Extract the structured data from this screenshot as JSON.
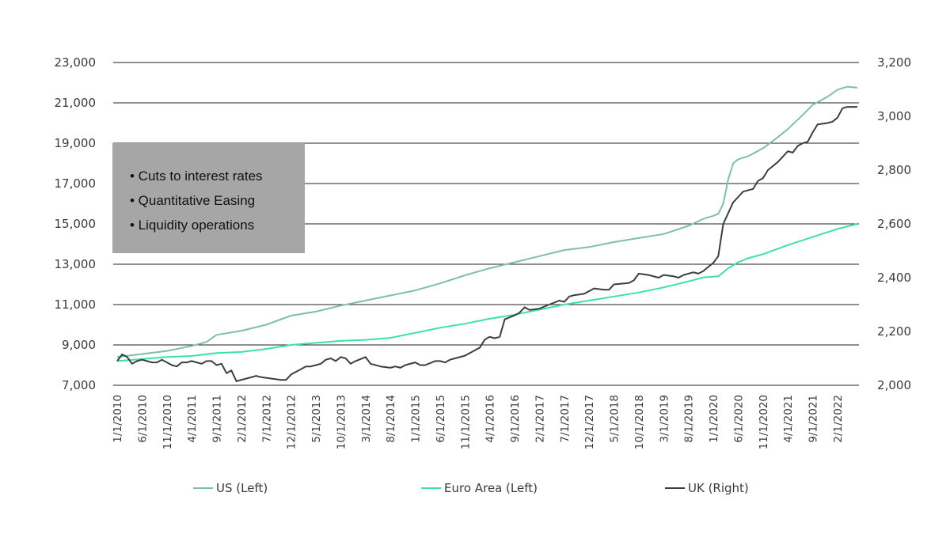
{
  "note_box": {
    "items": [
      "• Cuts to interest rates",
      "• Quantitative Easing",
      "• Liquidity operations"
    ]
  },
  "chart_data": {
    "type": "line",
    "title": "",
    "xlabel": "",
    "ylabel_left": "",
    "ylabel_right": "",
    "y_left": {
      "lim": [
        7000,
        23000
      ],
      "ticks": [
        "7,000",
        "9,000",
        "11,000",
        "13,000",
        "15,000",
        "17,000",
        "19,000",
        "21,000",
        "23,000"
      ]
    },
    "y_right": {
      "lim": [
        2000,
        3200
      ],
      "ticks": [
        "2,000",
        "2,200",
        "2,400",
        "2,600",
        "2,800",
        "3,000",
        "3,200"
      ]
    },
    "x_ticks": [
      "1/1/2010",
      "6/1/2010",
      "11/1/2010",
      "4/1/2011",
      "9/1/2011",
      "2/1/2012",
      "7/1/2012",
      "12/1/2012",
      "5/1/2013",
      "10/1/2013",
      "3/1/2014",
      "8/1/2014",
      "1/1/2015",
      "6/1/2015",
      "11/1/2015",
      "4/1/2016",
      "9/1/2016",
      "2/1/2017",
      "7/1/2017",
      "12/1/2017",
      "5/1/2018",
      "10/1/2018",
      "3/1/2019",
      "8/1/2019",
      "1/1/2020",
      "6/1/2020",
      "11/1/2020",
      "4/1/2021",
      "9/1/2021",
      "2/1/2022"
    ],
    "grid": true,
    "legend_position": "bottom",
    "series": [
      {
        "name": "US (Left)",
        "axis": "left",
        "color": "#7fbfa5",
        "points": [
          [
            "2010-01",
            8400
          ],
          [
            "2010-06",
            8550
          ],
          [
            "2010-11",
            8700
          ],
          [
            "2011-04",
            8950
          ],
          [
            "2011-07",
            9150
          ],
          [
            "2011-09",
            9500
          ],
          [
            "2012-02",
            9700
          ],
          [
            "2012-07",
            10000
          ],
          [
            "2012-12",
            10450
          ],
          [
            "2013-05",
            10650
          ],
          [
            "2013-10",
            10950
          ],
          [
            "2014-03",
            11200
          ],
          [
            "2014-08",
            11450
          ],
          [
            "2015-01",
            11700
          ],
          [
            "2015-06",
            12050
          ],
          [
            "2015-11",
            12450
          ],
          [
            "2016-04",
            12800
          ],
          [
            "2016-09",
            13100
          ],
          [
            "2017-02",
            13400
          ],
          [
            "2017-07",
            13700
          ],
          [
            "2017-12",
            13850
          ],
          [
            "2018-05",
            14100
          ],
          [
            "2018-10",
            14300
          ],
          [
            "2019-03",
            14500
          ],
          [
            "2019-08",
            14900
          ],
          [
            "2019-11",
            15250
          ],
          [
            "2020-01",
            15400
          ],
          [
            "2020-02",
            15500
          ],
          [
            "2020-03",
            16000
          ],
          [
            "2020-04",
            17200
          ],
          [
            "2020-05",
            18000
          ],
          [
            "2020-06",
            18200
          ],
          [
            "2020-08",
            18350
          ],
          [
            "2020-11",
            18750
          ],
          [
            "2021-02",
            19300
          ],
          [
            "2021-04",
            19700
          ],
          [
            "2021-07",
            20400
          ],
          [
            "2021-09",
            20900
          ],
          [
            "2021-12",
            21300
          ],
          [
            "2022-02",
            21650
          ],
          [
            "2022-04",
            21800
          ],
          [
            "2022-06",
            21750
          ]
        ]
      },
      {
        "name": "Euro Area (Left)",
        "axis": "left",
        "color": "#3ee0a8",
        "points": [
          [
            "2010-01",
            8200
          ],
          [
            "2010-06",
            8300
          ],
          [
            "2010-11",
            8400
          ],
          [
            "2011-04",
            8450
          ],
          [
            "2011-09",
            8600
          ],
          [
            "2012-02",
            8650
          ],
          [
            "2012-07",
            8800
          ],
          [
            "2012-12",
            9000
          ],
          [
            "2013-05",
            9100
          ],
          [
            "2013-10",
            9200
          ],
          [
            "2014-03",
            9250
          ],
          [
            "2014-08",
            9350
          ],
          [
            "2015-01",
            9600
          ],
          [
            "2015-06",
            9850
          ],
          [
            "2015-11",
            10050
          ],
          [
            "2016-04",
            10300
          ],
          [
            "2016-09",
            10500
          ],
          [
            "2017-02",
            10750
          ],
          [
            "2017-07",
            11000
          ],
          [
            "2017-12",
            11200
          ],
          [
            "2018-05",
            11400
          ],
          [
            "2018-10",
            11600
          ],
          [
            "2019-03",
            11850
          ],
          [
            "2019-08",
            12150
          ],
          [
            "2019-11",
            12350
          ],
          [
            "2020-02",
            12400
          ],
          [
            "2020-04",
            12800
          ],
          [
            "2020-06",
            13100
          ],
          [
            "2020-08",
            13300
          ],
          [
            "2020-11",
            13500
          ],
          [
            "2021-04",
            13950
          ],
          [
            "2021-09",
            14350
          ],
          [
            "2022-02",
            14750
          ],
          [
            "2022-06",
            15000
          ]
        ]
      },
      {
        "name": "UK (Right)",
        "axis": "right",
        "color": "#3c3f42",
        "points": [
          [
            "2010-01",
            2090
          ],
          [
            "2010-02",
            2115
          ],
          [
            "2010-03",
            2105
          ],
          [
            "2010-04",
            2080
          ],
          [
            "2010-05",
            2090
          ],
          [
            "2010-06",
            2095
          ],
          [
            "2010-07",
            2090
          ],
          [
            "2010-08",
            2085
          ],
          [
            "2010-09",
            2085
          ],
          [
            "2010-10",
            2095
          ],
          [
            "2010-11",
            2085
          ],
          [
            "2010-12",
            2075
          ],
          [
            "2011-01",
            2070
          ],
          [
            "2011-02",
            2085
          ],
          [
            "2011-03",
            2085
          ],
          [
            "2011-04",
            2090
          ],
          [
            "2011-05",
            2085
          ],
          [
            "2011-06",
            2080
          ],
          [
            "2011-07",
            2090
          ],
          [
            "2011-08",
            2090
          ],
          [
            "2011-09",
            2075
          ],
          [
            "2011-10",
            2080
          ],
          [
            "2011-11",
            2045
          ],
          [
            "2011-12",
            2055
          ],
          [
            "2012-01",
            2015
          ],
          [
            "2012-03",
            2025
          ],
          [
            "2012-05",
            2035
          ],
          [
            "2012-06",
            2030
          ],
          [
            "2012-08",
            2025
          ],
          [
            "2012-10",
            2020
          ],
          [
            "2012-11",
            2020
          ],
          [
            "2012-12",
            2040
          ],
          [
            "2013-02",
            2060
          ],
          [
            "2013-03",
            2070
          ],
          [
            "2013-04",
            2070
          ],
          [
            "2013-05",
            2075
          ],
          [
            "2013-06",
            2080
          ],
          [
            "2013-07",
            2095
          ],
          [
            "2013-08",
            2100
          ],
          [
            "2013-09",
            2090
          ],
          [
            "2013-10",
            2105
          ],
          [
            "2013-11",
            2100
          ],
          [
            "2013-12",
            2080
          ],
          [
            "2014-01",
            2090
          ],
          [
            "2014-03",
            2105
          ],
          [
            "2014-04",
            2080
          ],
          [
            "2014-06",
            2070
          ],
          [
            "2014-08",
            2065
          ],
          [
            "2014-09",
            2070
          ],
          [
            "2014-10",
            2065
          ],
          [
            "2014-11",
            2075
          ],
          [
            "2015-01",
            2085
          ],
          [
            "2015-02",
            2075
          ],
          [
            "2015-03",
            2075
          ],
          [
            "2015-05",
            2090
          ],
          [
            "2015-06",
            2090
          ],
          [
            "2015-07",
            2085
          ],
          [
            "2015-08",
            2095
          ],
          [
            "2015-09",
            2100
          ],
          [
            "2015-11",
            2110
          ],
          [
            "2015-12",
            2120
          ],
          [
            "2016-02",
            2140
          ],
          [
            "2016-03",
            2170
          ],
          [
            "2016-04",
            2180
          ],
          [
            "2016-05",
            2175
          ],
          [
            "2016-06",
            2180
          ],
          [
            "2016-07",
            2245
          ],
          [
            "2016-09",
            2260
          ],
          [
            "2016-10",
            2270
          ],
          [
            "2016-11",
            2290
          ],
          [
            "2016-12",
            2280
          ],
          [
            "2017-02",
            2285
          ],
          [
            "2017-04",
            2300
          ],
          [
            "2017-06",
            2315
          ],
          [
            "2017-07",
            2310
          ],
          [
            "2017-08",
            2330
          ],
          [
            "2017-09",
            2335
          ],
          [
            "2017-11",
            2340
          ],
          [
            "2017-12",
            2350
          ],
          [
            "2018-01",
            2360
          ],
          [
            "2018-03",
            2355
          ],
          [
            "2018-04",
            2355
          ],
          [
            "2018-05",
            2375
          ],
          [
            "2018-08",
            2380
          ],
          [
            "2018-09",
            2390
          ],
          [
            "2018-10",
            2415
          ],
          [
            "2018-12",
            2410
          ],
          [
            "2019-02",
            2400
          ],
          [
            "2019-03",
            2410
          ],
          [
            "2019-05",
            2405
          ],
          [
            "2019-06",
            2400
          ],
          [
            "2019-07",
            2410
          ],
          [
            "2019-09",
            2420
          ],
          [
            "2019-10",
            2415
          ],
          [
            "2019-11",
            2425
          ],
          [
            "2019-12",
            2440
          ],
          [
            "2020-01",
            2455
          ],
          [
            "2020-02",
            2480
          ],
          [
            "2020-03",
            2600
          ],
          [
            "2020-04",
            2640
          ],
          [
            "2020-05",
            2680
          ],
          [
            "2020-06",
            2700
          ],
          [
            "2020-07",
            2720
          ],
          [
            "2020-09",
            2730
          ],
          [
            "2020-10",
            2760
          ],
          [
            "2020-11",
            2770
          ],
          [
            "2020-12",
            2800
          ],
          [
            "2021-02",
            2830
          ],
          [
            "2021-04",
            2870
          ],
          [
            "2021-05",
            2865
          ],
          [
            "2021-06",
            2890
          ],
          [
            "2021-07",
            2900
          ],
          [
            "2021-08",
            2905
          ],
          [
            "2021-09",
            2940
          ],
          [
            "2021-10",
            2970
          ],
          [
            "2021-12",
            2975
          ],
          [
            "2022-01",
            2980
          ],
          [
            "2022-02",
            2995
          ],
          [
            "2022-03",
            3030
          ],
          [
            "2022-04",
            3035
          ],
          [
            "2022-06",
            3035
          ]
        ]
      }
    ]
  }
}
